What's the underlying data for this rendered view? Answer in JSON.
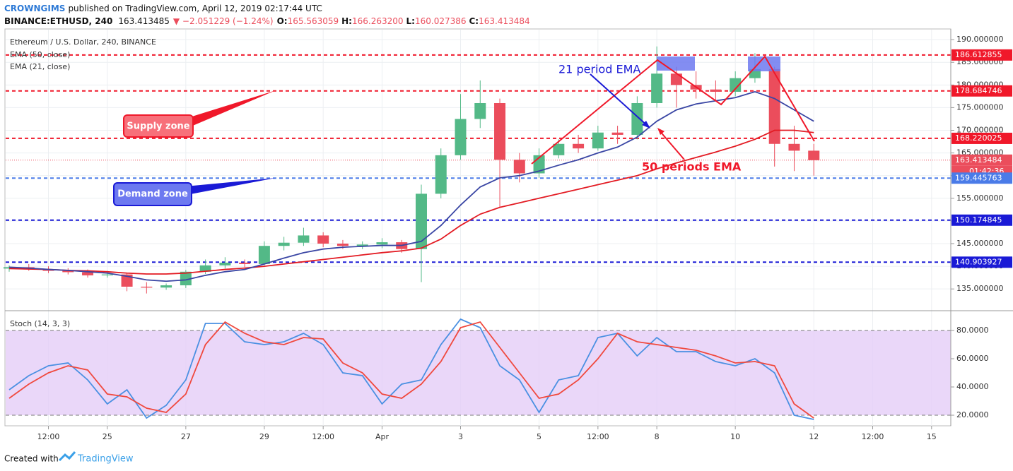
{
  "header": {
    "author": "CROWNGIMS",
    "published": "published on TradingView.com, April 12, 2019 02:17:44 UTC",
    "symbol": "BINANCE:ETHUSD, 240",
    "last": "163.413485",
    "change": "▼ −2.051229 (−1.24%)",
    "ohlc": [
      {
        "label": "O:",
        "value": "165.563059"
      },
      {
        "label": "H:",
        "value": "166.263200"
      },
      {
        "label": "L:",
        "value": "160.027386"
      },
      {
        "label": "C:",
        "value": "163.413484"
      }
    ]
  },
  "footer": {
    "created": "Created with",
    "brand": "TradingView"
  },
  "chart_data": [
    {
      "type": "candlestick",
      "title": "Ethereum / U.S. Dollar, 240, BINANCE",
      "x": [
        -2.5,
        -2,
        -1.5,
        -1,
        -0.5,
        0,
        0.5,
        1,
        1.5,
        2,
        2.5,
        3,
        3.5,
        4,
        4.5,
        5,
        5.5,
        6,
        6.5,
        7,
        7.5,
        8,
        8.5,
        9,
        9.5,
        10,
        10.5,
        11,
        11.5,
        12,
        12.5,
        13,
        13.5,
        14,
        14.5,
        15,
        15.5,
        16,
        16.5,
        17,
        17.5,
        18
      ],
      "open": [
        139.5,
        139.8,
        139.3,
        139,
        138.7,
        138,
        138.2,
        135.5,
        135.3,
        135.8,
        138.8,
        140.2,
        140.8,
        140.5,
        144.5,
        145.2,
        146.8,
        145,
        144.5,
        144.8,
        145.3,
        143.8,
        156,
        164.5,
        172.5,
        176,
        163.5,
        160.5,
        164.5,
        167,
        166,
        169.5,
        169,
        176,
        182.5,
        180,
        179,
        178.5,
        181.5,
        183.5,
        167,
        165.5
      ],
      "high": [
        140.2,
        140.5,
        140,
        139.6,
        139.3,
        139,
        138.6,
        136.5,
        136.2,
        139.2,
        141.5,
        142,
        141.5,
        145.5,
        146.5,
        148.5,
        147.5,
        145.8,
        145.5,
        146.2,
        145.8,
        158,
        166,
        178,
        181,
        177,
        165,
        166,
        168,
        169,
        171,
        171,
        177.5,
        188.5,
        184,
        183,
        181,
        183,
        187,
        184,
        171,
        167
      ],
      "low": [
        138.8,
        139,
        138.5,
        138.2,
        137.5,
        137.5,
        134.5,
        134,
        134.8,
        135.2,
        138.3,
        139.5,
        139.8,
        140.2,
        143.5,
        144.5,
        144.2,
        143.8,
        143.8,
        144,
        143,
        136.5,
        155,
        163.5,
        170.5,
        153,
        158.5,
        159.5,
        163.8,
        165,
        165.5,
        167,
        168,
        175,
        175,
        177,
        176.5,
        177.5,
        180.5,
        162,
        161,
        160
      ],
      "close": [
        139.8,
        139.3,
        139,
        138.7,
        138,
        138.2,
        135.5,
        135.3,
        135.8,
        138.8,
        140.2,
        140.8,
        140.5,
        144.5,
        145.2,
        146.8,
        145,
        144.5,
        144.8,
        145.3,
        143.8,
        156,
        164.5,
        172.5,
        176,
        163.5,
        160.5,
        164.5,
        167,
        166,
        169.5,
        169,
        176,
        182.5,
        180,
        179,
        178.5,
        181.5,
        183.5,
        167,
        165.5,
        163.4
      ],
      "up_color": "#53b987",
      "down_color": "#eb4d5c",
      "series": [
        {
          "name": "EMA (50, close)",
          "color": "#e31b23",
          "values": [
            139.5,
            139.4,
            139.3,
            139.1,
            139,
            138.8,
            138.5,
            138.3,
            138.3,
            138.5,
            138.9,
            139.3,
            139.6,
            140,
            140.5,
            141,
            141.5,
            142,
            142.5,
            143,
            143.4,
            144,
            146,
            149,
            151.5,
            153,
            154,
            155,
            156,
            157,
            158,
            159,
            160,
            161.5,
            162.8,
            164,
            165.2,
            166.5,
            168,
            170,
            170,
            169.5
          ]
        },
        {
          "name": "EMA (21, close)",
          "color": "#3a46a4",
          "values": [
            139.8,
            139.6,
            139.3,
            139.1,
            138.8,
            138.5,
            137.8,
            137,
            136.7,
            137,
            138,
            138.8,
            139.3,
            140.5,
            141.8,
            143,
            143.8,
            144.2,
            144.4,
            144.6,
            144.6,
            145.5,
            149,
            153.5,
            157.5,
            159.5,
            160,
            161,
            162.3,
            163.5,
            165,
            166.3,
            168.5,
            172,
            174.5,
            175.8,
            176.5,
            177.2,
            178.5,
            177,
            174.5,
            172
          ]
        }
      ],
      "ylim": [
        130.2,
        192.2
      ],
      "yticks": [
        {
          "value": 135,
          "label": "135.000000"
        },
        {
          "value": 140,
          "label": "140.000000"
        },
        {
          "value": 145,
          "label": "145.000000"
        },
        {
          "value": 150,
          "label": "150.000000"
        },
        {
          "value": 155,
          "label": "155.000000"
        },
        {
          "value": 160,
          "label": "160.000000"
        },
        {
          "value": 165,
          "label": "165.000000"
        },
        {
          "value": 170,
          "label": "170.000000"
        },
        {
          "value": 175,
          "label": "175.000000"
        },
        {
          "value": 180,
          "label": "180.000000"
        },
        {
          "value": 185,
          "label": "185.000000"
        },
        {
          "value": 190,
          "label": "190.000000"
        }
      ],
      "xlim": [
        -2.59,
        21.49
      ],
      "xticks": [
        {
          "value": -1.5,
          "label": "12:00"
        },
        {
          "value": 0,
          "label": "25"
        },
        {
          "value": 2,
          "label": "27"
        },
        {
          "value": 4,
          "label": "29"
        },
        {
          "value": 5.5,
          "label": "12:00"
        },
        {
          "value": 7,
          "label": "Apr"
        },
        {
          "value": 9,
          "label": "3"
        },
        {
          "value": 11,
          "label": "5"
        },
        {
          "value": 12.5,
          "label": "12:00"
        },
        {
          "value": 14,
          "label": "8"
        },
        {
          "value": 16,
          "label": "10"
        },
        {
          "value": 18,
          "label": "12"
        },
        {
          "value": 19.5,
          "label": "12:00"
        },
        {
          "value": 21,
          "label": "15"
        }
      ],
      "grid": true,
      "levels": [
        {
          "value": 186.612855,
          "color": "#f0182a",
          "style": "dashed"
        },
        {
          "value": 178.684746,
          "color": "#f0182a",
          "style": "dashed"
        },
        {
          "value": 168.220025,
          "color": "#f0182a",
          "style": "dashed"
        },
        {
          "value": 163.413484,
          "color": "#eb4d5c",
          "style": "dotted"
        },
        {
          "value": 159.445763,
          "color": "#4a7be8",
          "style": "dashed"
        },
        {
          "value": 150.174845,
          "color": "#1a1ad6",
          "style": "dashed"
        },
        {
          "value": 140.903927,
          "color": "#1a1ad6",
          "style": "dashed"
        }
      ],
      "countdown": "01:42:36",
      "annotations": [
        "Supply zone",
        "Demand zone",
        "21 period EMA",
        "50 periods EMA"
      ]
    },
    {
      "type": "line",
      "title": "Stoch (14, 3, 3)",
      "x": [
        -2.5,
        -2,
        -1.5,
        -1,
        -0.5,
        0,
        0.5,
        1,
        1.5,
        2,
        2.5,
        3,
        3.5,
        4,
        4.5,
        5,
        5.5,
        6,
        6.5,
        7,
        7.5,
        8,
        8.5,
        9,
        9.5,
        10,
        10.5,
        11,
        11.5,
        12,
        12.5,
        13,
        13.5,
        14,
        14.5,
        15,
        15.5,
        16,
        16.5,
        17,
        17.5,
        18
      ],
      "series": [
        {
          "color": "#4a90e2",
          "values": [
            38,
            48,
            55,
            57,
            45,
            28,
            38,
            18,
            27,
            45,
            85,
            85,
            72,
            70,
            72,
            78,
            70,
            50,
            48,
            28,
            42,
            45,
            70,
            88,
            82,
            55,
            45,
            22,
            45,
            48,
            75,
            78,
            62,
            75,
            65,
            65,
            58,
            55,
            60,
            50,
            20,
            17
          ]
        },
        {
          "color": "#f0493e",
          "values": [
            32,
            42,
            50,
            55,
            52,
            35,
            33,
            25,
            22,
            35,
            70,
            86,
            78,
            72,
            70,
            75,
            74,
            57,
            50,
            35,
            32,
            42,
            58,
            82,
            86,
            68,
            50,
            32,
            35,
            45,
            60,
            78,
            72,
            70,
            68,
            66,
            62,
            57,
            58,
            55,
            28,
            18
          ]
        }
      ],
      "ylim": [
        12.5,
        94
      ],
      "yticks": [
        {
          "value": 20,
          "label": "20.0000"
        },
        {
          "value": 40,
          "label": "40.0000"
        },
        {
          "value": 60,
          "label": "60.0000"
        },
        {
          "value": 80,
          "label": "80.0000"
        }
      ],
      "band": [
        20,
        80
      ],
      "band_color": "#e5cdf8"
    }
  ]
}
